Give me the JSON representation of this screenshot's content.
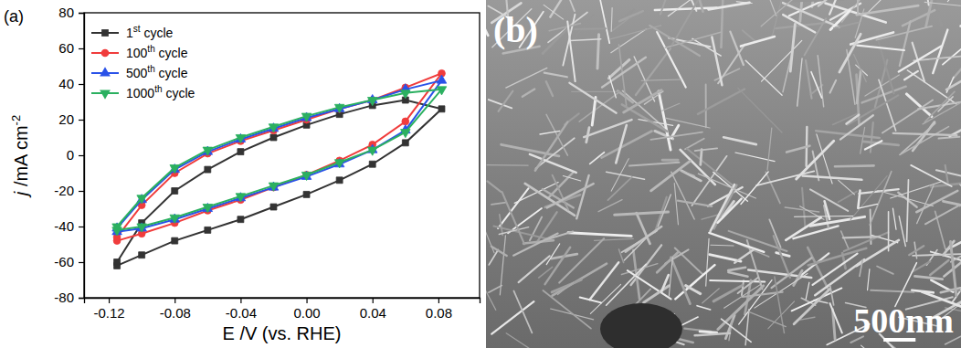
{
  "chart_data": {
    "type": "line",
    "panel_label": "(a)",
    "x_label": "E /V (vs. RHE)",
    "y_label": "j /mA cm-2",
    "x": [
      -0.115,
      -0.1,
      -0.08,
      -0.06,
      -0.04,
      -0.02,
      0.0,
      0.02,
      0.04,
      0.06,
      0.082,
      0.06,
      0.04,
      0.02,
      0.0,
      -0.02,
      -0.04,
      -0.06,
      -0.08,
      -0.1,
      -0.115
    ],
    "series": [
      {
        "name": "1st cycle",
        "color": "#333333",
        "marker": "square",
        "values": [
          -62,
          -56,
          -48,
          -42,
          -36,
          -29,
          -22,
          -14,
          -5,
          7,
          26,
          31,
          28,
          23,
          17,
          10,
          2,
          -8,
          -20,
          -38,
          -60
        ]
      },
      {
        "name": "100th cycle",
        "color": "#f03c3c",
        "marker": "circle",
        "values": [
          -48,
          -44,
          -38,
          -31,
          -25,
          -18,
          -11,
          -3,
          6,
          19,
          46,
          38,
          31,
          26,
          20,
          14,
          8,
          1,
          -10,
          -28,
          -46
        ]
      },
      {
        "name": "500th cycle",
        "color": "#2a52e8",
        "marker": "triangle-up",
        "values": [
          -43,
          -41,
          -36,
          -30,
          -24,
          -18,
          -12,
          -5,
          3,
          14,
          42,
          37,
          31,
          26,
          21,
          15,
          9,
          2,
          -8,
          -25,
          -41
        ]
      },
      {
        "name": "1000th cycle",
        "color": "#2bb060",
        "marker": "triangle-down",
        "values": [
          -42,
          -40,
          -35,
          -29,
          -23,
          -17,
          -11,
          -4,
          3,
          13,
          37,
          35,
          31,
          27,
          22,
          16,
          10,
          3,
          -7,
          -24,
          -40
        ]
      }
    ],
    "xlim": [
      -0.135,
      0.105
    ],
    "xticks": [
      -0.12,
      -0.08,
      -0.04,
      {
        "value": 0,
        "label": "0.00"
      },
      0.04,
      0.08
    ],
    "ylim": [
      -80,
      80
    ],
    "yticks": [
      -80,
      -60,
      -40,
      -20,
      0,
      20,
      40,
      60,
      80
    ],
    "legend": "upper left"
  },
  "image": {
    "panel_label": "(b)",
    "scale_bar": "500nm"
  }
}
